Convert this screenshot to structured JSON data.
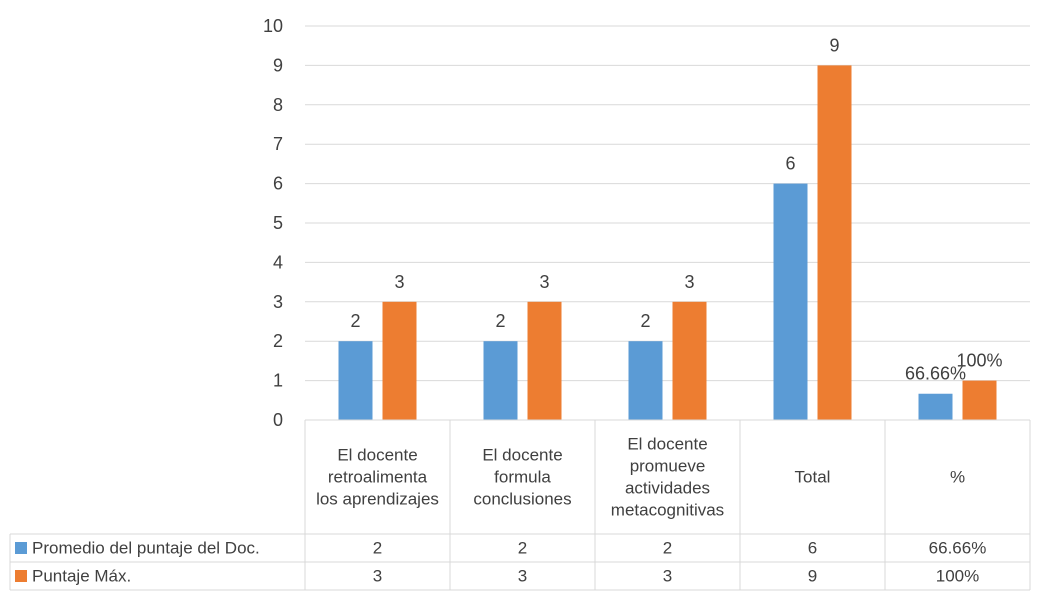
{
  "chart_data": {
    "type": "bar",
    "categories": [
      [
        "El docente",
        "retroalimenta",
        "los aprendizajes"
      ],
      [
        "El docente",
        "formula",
        "conclusiones"
      ],
      [
        "El docente",
        "promueve",
        "actividades",
        "metacognitivas"
      ],
      [
        "Total"
      ],
      [
        "%"
      ]
    ],
    "series": [
      {
        "name": "Promedio del puntaje del Doc.",
        "color": "#5B9BD5",
        "values": [
          2,
          2,
          2,
          6,
          0.6666
        ],
        "labels": [
          "2",
          "2",
          "2",
          "6",
          "66.66%"
        ],
        "table": [
          "2",
          "2",
          "2",
          "6",
          "66.66%"
        ]
      },
      {
        "name": "Puntaje Máx.",
        "color": "#ED7D31",
        "values": [
          3,
          3,
          3,
          9,
          1
        ],
        "labels": [
          "3",
          "3",
          "3",
          "9",
          "100%"
        ],
        "table": [
          "3",
          "3",
          "3",
          "9",
          "100%"
        ]
      }
    ],
    "ylim": [
      0,
      10
    ],
    "yticks": [
      "0",
      "1",
      "2",
      "3",
      "4",
      "5",
      "6",
      "7",
      "8",
      "9",
      "10"
    ],
    "grid": true,
    "legend": "data-table",
    "gridColor": "#D9D9D9",
    "textColor": "#404040"
  }
}
